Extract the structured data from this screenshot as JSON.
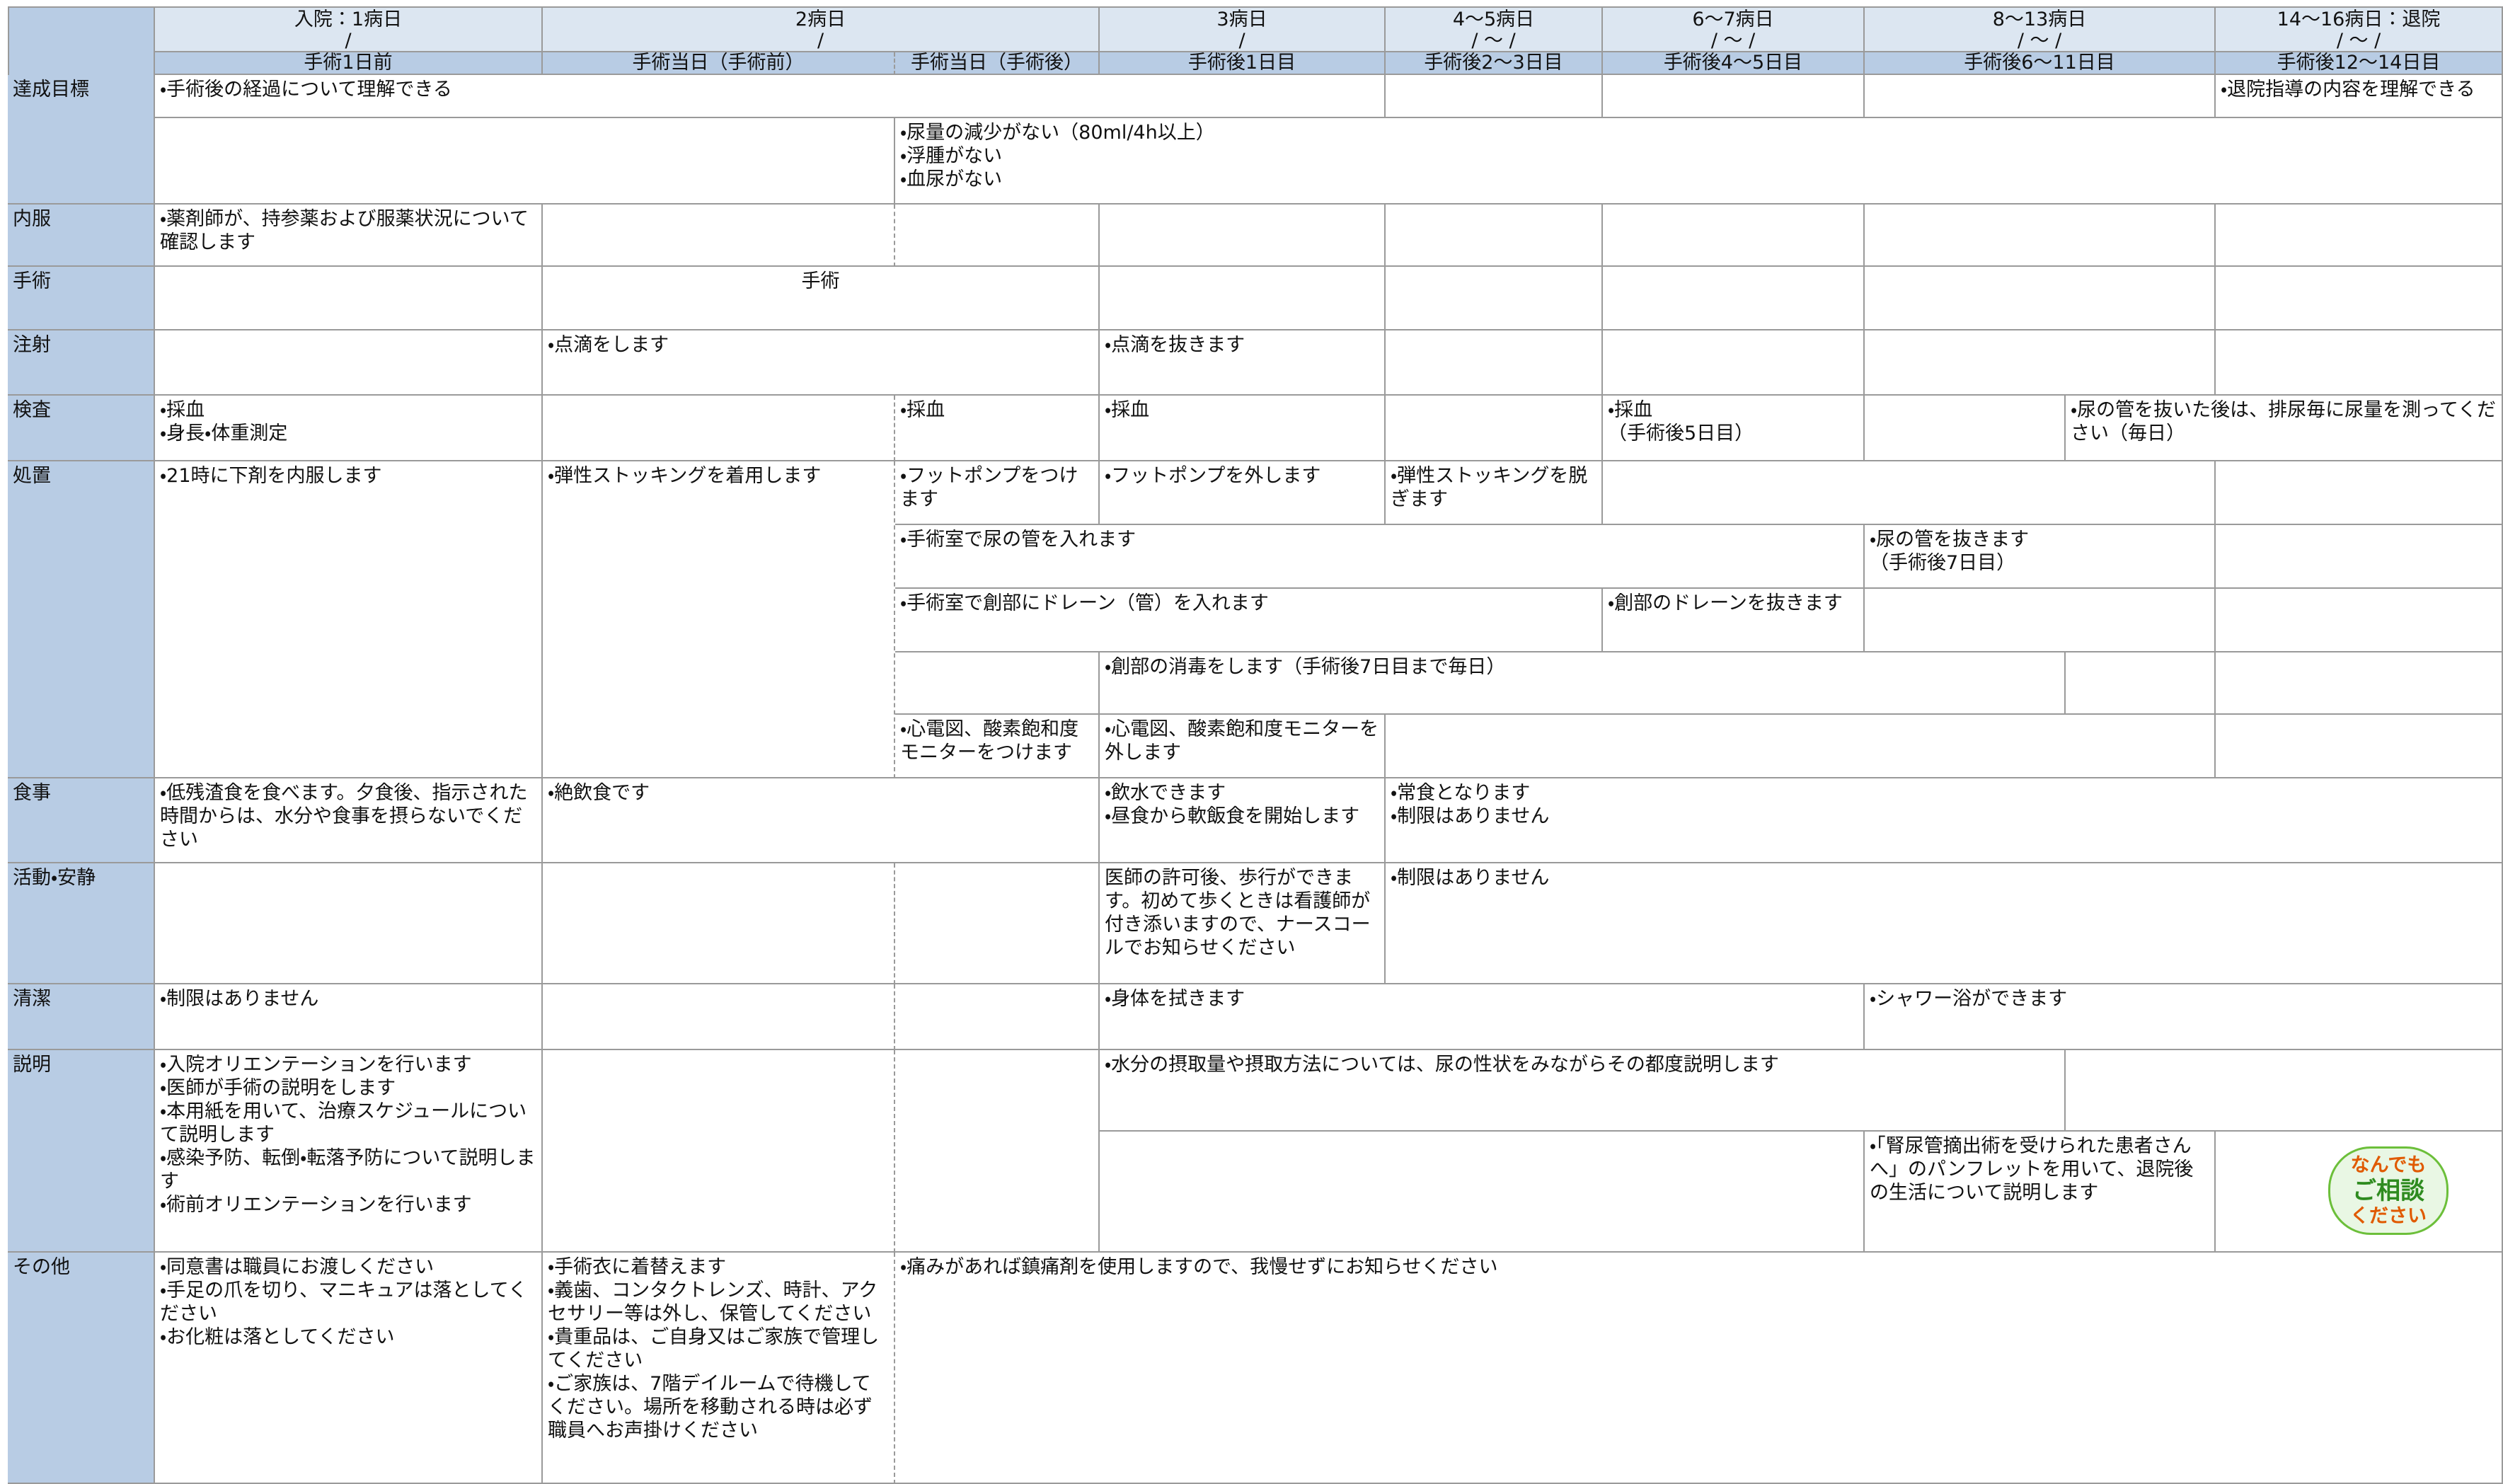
{
  "header": {
    "days": [
      "入院：1病日",
      "2病日",
      "3病日",
      "4～5病日",
      "6～7病日",
      "8～13病日",
      "14～16病日：退院"
    ],
    "date_slots": [
      "/",
      "/",
      "/",
      "/ ～ /",
      "/ ～ /",
      "/ ～ /",
      "/ ～ /"
    ],
    "sub": [
      "手術1日前",
      "手術当日（手術前）",
      "手術当日（手術後）",
      "手術後1日目",
      "手術後2～3日目",
      "手術後4～5日目",
      "手術後6～11日目",
      "手術後12～14日目"
    ]
  },
  "rows": [
    {
      "label": "達成目標",
      "cells": [
        "・手術後の経過について理解できる",
        "・退院指導の内容を理解できる",
        "・尿量の減少がない（80ml/4h以上）\n・浮腫がない\n・血尿がない"
      ]
    },
    {
      "label": "内服",
      "cells": [
        "・薬剤師が、持参薬および服薬状況について確認します"
      ]
    },
    {
      "label": "手術",
      "cells": [
        "手術"
      ]
    },
    {
      "label": "注射",
      "cells": [
        "・点滴をします",
        "・点滴を抜きます"
      ]
    },
    {
      "label": "検査",
      "cells": [
        "・採血\n・身長・体重測定",
        "・採血",
        "・採血",
        "・採血\n（手術後5日目）",
        "・尿の管を抜いた後は、排尿毎に尿量を測ってください（毎日）"
      ]
    },
    {
      "label": "処置",
      "cells": [
        "・21時に下剤を内服します",
        "・弾性ストッキングを着用します",
        "・フットポンプをつけます",
        "・フットポンプを外します",
        "・弾性ストッキングを脱ぎます",
        "・手術室で尿の管を入れます",
        "・尿の管を抜きます\n（手術後7日目）",
        "・手術室で創部にドレーン（管）を入れます",
        "・創部のドレーンを抜きます",
        "・創部の消毒をします（手術後7日目まで毎日）",
        "・心電図、酸素飽和度モニターをつけます",
        "・心電図、酸素飽和度モニターを外します"
      ]
    },
    {
      "label": "食事",
      "cells": [
        "・低残渣食を食べます。夕食後、指示された時間からは、水分や食事を摂らないでください",
        "・絶飲食です",
        "・飲水できます\n・昼食から軟飯食を開始します",
        "・常食となります\n・制限はありません"
      ]
    },
    {
      "label": "活動・安静",
      "cells": [
        "医師の許可後、歩行ができます。初めて歩くときは看護師が付き添いますので、ナースコールでお知らせください",
        "・制限はありません"
      ]
    },
    {
      "label": "清潔",
      "cells": [
        "・制限はありません",
        "・身体を拭きます",
        "・シャワー浴ができます"
      ]
    },
    {
      "label": "説明",
      "cells": [
        "・入院オリエンテーションを行います\n・医師が手術の説明をします\n・本用紙を用いて、治療スケジュールについて説明します\n・感染予防、転倒・転落予防について説明します\n・術前オリエンテーションを行います",
        "・水分の摂取量や摂取方法については、尿の性状をみながらその都度説明します",
        "・「腎尿管摘出術を受けられた患者さんへ」のパンフレットを用いて、退院後の生活について説明します"
      ]
    },
    {
      "label": "その他",
      "cells": [
        "・同意書は職員にお渡しください\n・手足の爪を切り、マニキュアは落としてください\n・お化粧は落としてください",
        "・手術衣に着替えます\n・義歯、コンタクトレンズ、時計、アクセサリー等は外し、保管してください\n・貴重品は、ご自身又はご家族で管理してください\n・ご家族は、7階デイルームで待機してください。場所を移動される時は必ず職員へお声掛けください",
        "・痛みがあれば鎮痛剤を使用しますので、我慢せずにお知らせください"
      ]
    }
  ],
  "badge": [
    "なんでも",
    "ご相談",
    "ください"
  ]
}
